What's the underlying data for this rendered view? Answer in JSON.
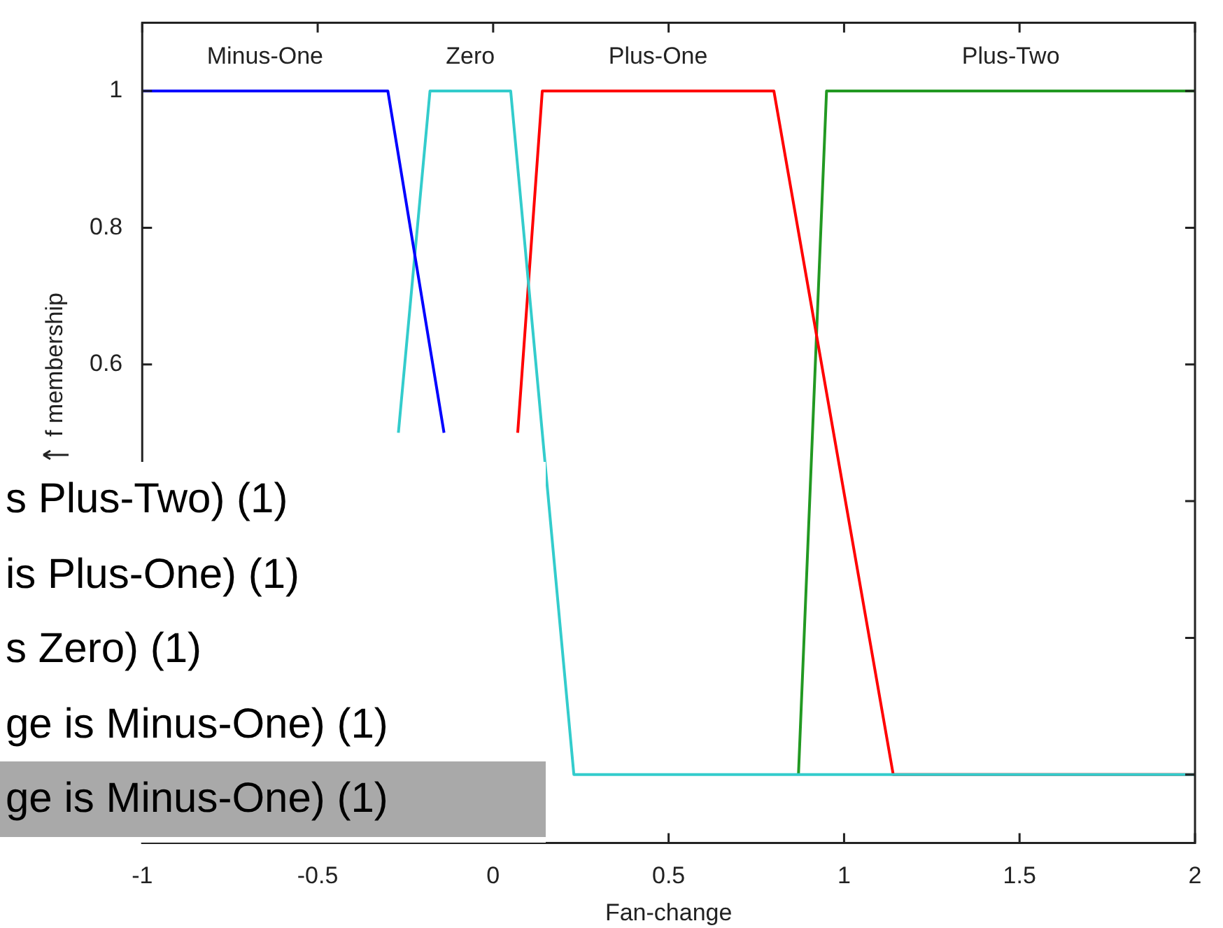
{
  "chart_data": {
    "type": "line",
    "xlabel": "Fan-change",
    "ylabel": "f membership",
    "xlim": [
      -1,
      2
    ],
    "xticks": [
      -1,
      -0.5,
      0,
      0.5,
      1,
      1.5,
      2
    ],
    "ylim": [
      -0.1,
      1.1
    ],
    "yticks": [
      {
        "value": 0,
        "label": null
      },
      {
        "value": 0.2,
        "label": null
      },
      {
        "value": 0.4,
        "label": null
      },
      0.6,
      0.8,
      1
    ],
    "grid": false,
    "legend": false,
    "marker": "none",
    "line_style": "solid",
    "series": [
      {
        "name": "Minus-One",
        "color": "#0000ff",
        "x": [
          -1,
          -0.3,
          -0.14
        ],
        "values": [
          1,
          1,
          0.5
        ]
      },
      {
        "name": "Zero",
        "color": "#33cccc",
        "x": [
          -0.27,
          -0.18,
          0.05,
          0.23,
          2
        ],
        "values": [
          0.5,
          1,
          1,
          0,
          0
        ]
      },
      {
        "name": "Plus-One",
        "color": "#ff0000",
        "x": [
          0.07,
          0.14,
          0.8,
          1.14,
          2
        ],
        "values": [
          0.5,
          1,
          1,
          0,
          0
        ]
      },
      {
        "name": "Plus-Two",
        "color": "#229922",
        "x": [
          0.87,
          0.95,
          2
        ],
        "values": [
          0,
          1,
          1
        ]
      }
    ],
    "annotations": [
      "s Plus-Two) (1)",
      "is Plus-One) (1)",
      "s Zero) (1)",
      "ge is Minus-One) (1)",
      "ge is Minus-One) (1)"
    ]
  }
}
